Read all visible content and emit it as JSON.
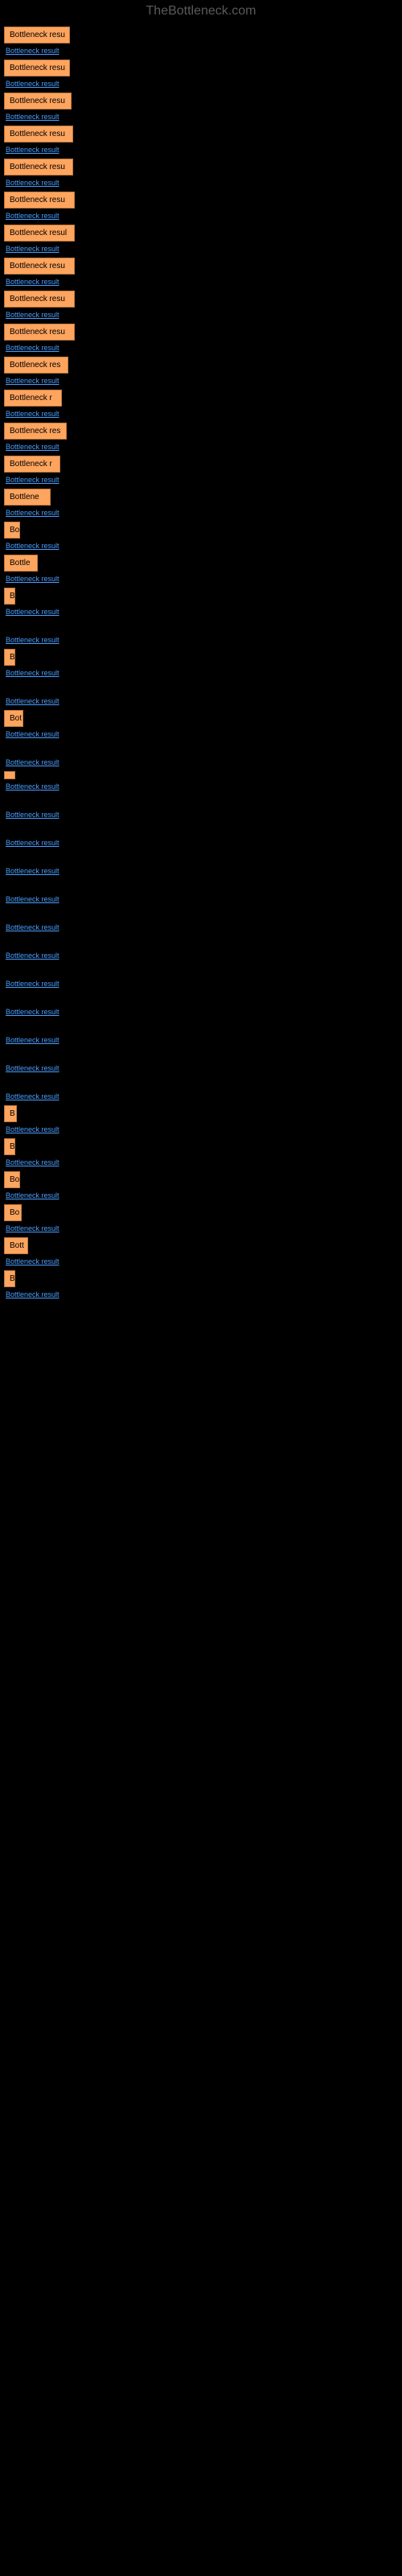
{
  "watermark": "TheBottleneck.com",
  "results": [
    {
      "width": 82,
      "text": "Bottleneck resu",
      "link": "Bottleneck result"
    },
    {
      "width": 82,
      "text": "Bottleneck resu",
      "link": "Bottleneck result"
    },
    {
      "width": 84,
      "text": "Bottleneck resu",
      "link": "Bottleneck result"
    },
    {
      "width": 86,
      "text": "Bottleneck resu",
      "link": "Bottleneck result"
    },
    {
      "width": 86,
      "text": "Bottleneck resu",
      "link": "Bottleneck result"
    },
    {
      "width": 88,
      "text": "Bottleneck resu",
      "link": "Bottleneck result"
    },
    {
      "width": 88,
      "text": "Bottleneck resul",
      "link": "Bottleneck result"
    },
    {
      "width": 88,
      "text": "Bottleneck resu",
      "link": "Bottleneck result"
    },
    {
      "width": 88,
      "text": "Bottleneck resu",
      "link": "Bottleneck result"
    },
    {
      "width": 88,
      "text": "Bottleneck resu",
      "link": "Bottleneck result"
    },
    {
      "width": 80,
      "text": "Bottleneck res",
      "link": "Bottleneck result"
    },
    {
      "width": 72,
      "text": "Bottleneck r",
      "link": "Bottleneck result"
    },
    {
      "width": 78,
      "text": "Bottleneck res",
      "link": "Bottleneck result"
    },
    {
      "width": 70,
      "text": "Bottleneck r",
      "link": "Bottleneck result"
    },
    {
      "width": 58,
      "text": "Bottlene",
      "link": "Bottleneck result"
    },
    {
      "width": 20,
      "text": "Bo",
      "link": "Bottleneck result"
    },
    {
      "width": 42,
      "text": "Bottle",
      "link": "Bottleneck result"
    },
    {
      "width": 12,
      "text": "B",
      "link": "Bottleneck result"
    },
    {
      "width": 0,
      "text": "",
      "link": "Bottleneck result"
    },
    {
      "width": 12,
      "text": "B",
      "link": "Bottleneck result"
    },
    {
      "width": 0,
      "text": "",
      "link": "Bottleneck result"
    },
    {
      "width": 24,
      "text": "Bot",
      "link": "Bottleneck result"
    },
    {
      "width": 0,
      "text": "",
      "link": "Bottleneck result"
    },
    {
      "width": 4,
      "text": "",
      "link": "Bottleneck result"
    },
    {
      "width": 0,
      "text": "",
      "link": "Bottleneck result"
    },
    {
      "width": 0,
      "text": "",
      "link": "Bottleneck result"
    },
    {
      "width": 0,
      "text": "",
      "link": "Bottleneck result"
    },
    {
      "width": 0,
      "text": "",
      "link": "Bottleneck result"
    },
    {
      "width": 0,
      "text": "",
      "link": "Bottleneck result"
    },
    {
      "width": 0,
      "text": "",
      "link": "Bottleneck result"
    },
    {
      "width": 0,
      "text": "",
      "link": "Bottleneck result"
    },
    {
      "width": 0,
      "text": "",
      "link": "Bottleneck result"
    },
    {
      "width": 0,
      "text": "",
      "link": "Bottleneck result"
    },
    {
      "width": 0,
      "text": "",
      "link": "Bottleneck result"
    },
    {
      "width": 0,
      "text": "",
      "link": "Bottleneck result"
    },
    {
      "width": 16,
      "text": "B",
      "link": "Bottleneck result"
    },
    {
      "width": 14,
      "text": "B",
      "link": "Bottleneck result"
    },
    {
      "width": 20,
      "text": "Bo",
      "link": "Bottleneck result"
    },
    {
      "width": 22,
      "text": "Bo",
      "link": "Bottleneck result"
    },
    {
      "width": 30,
      "text": "Bott",
      "link": "Bottleneck result"
    },
    {
      "width": 12,
      "text": "B",
      "link": "Bottleneck result"
    }
  ]
}
